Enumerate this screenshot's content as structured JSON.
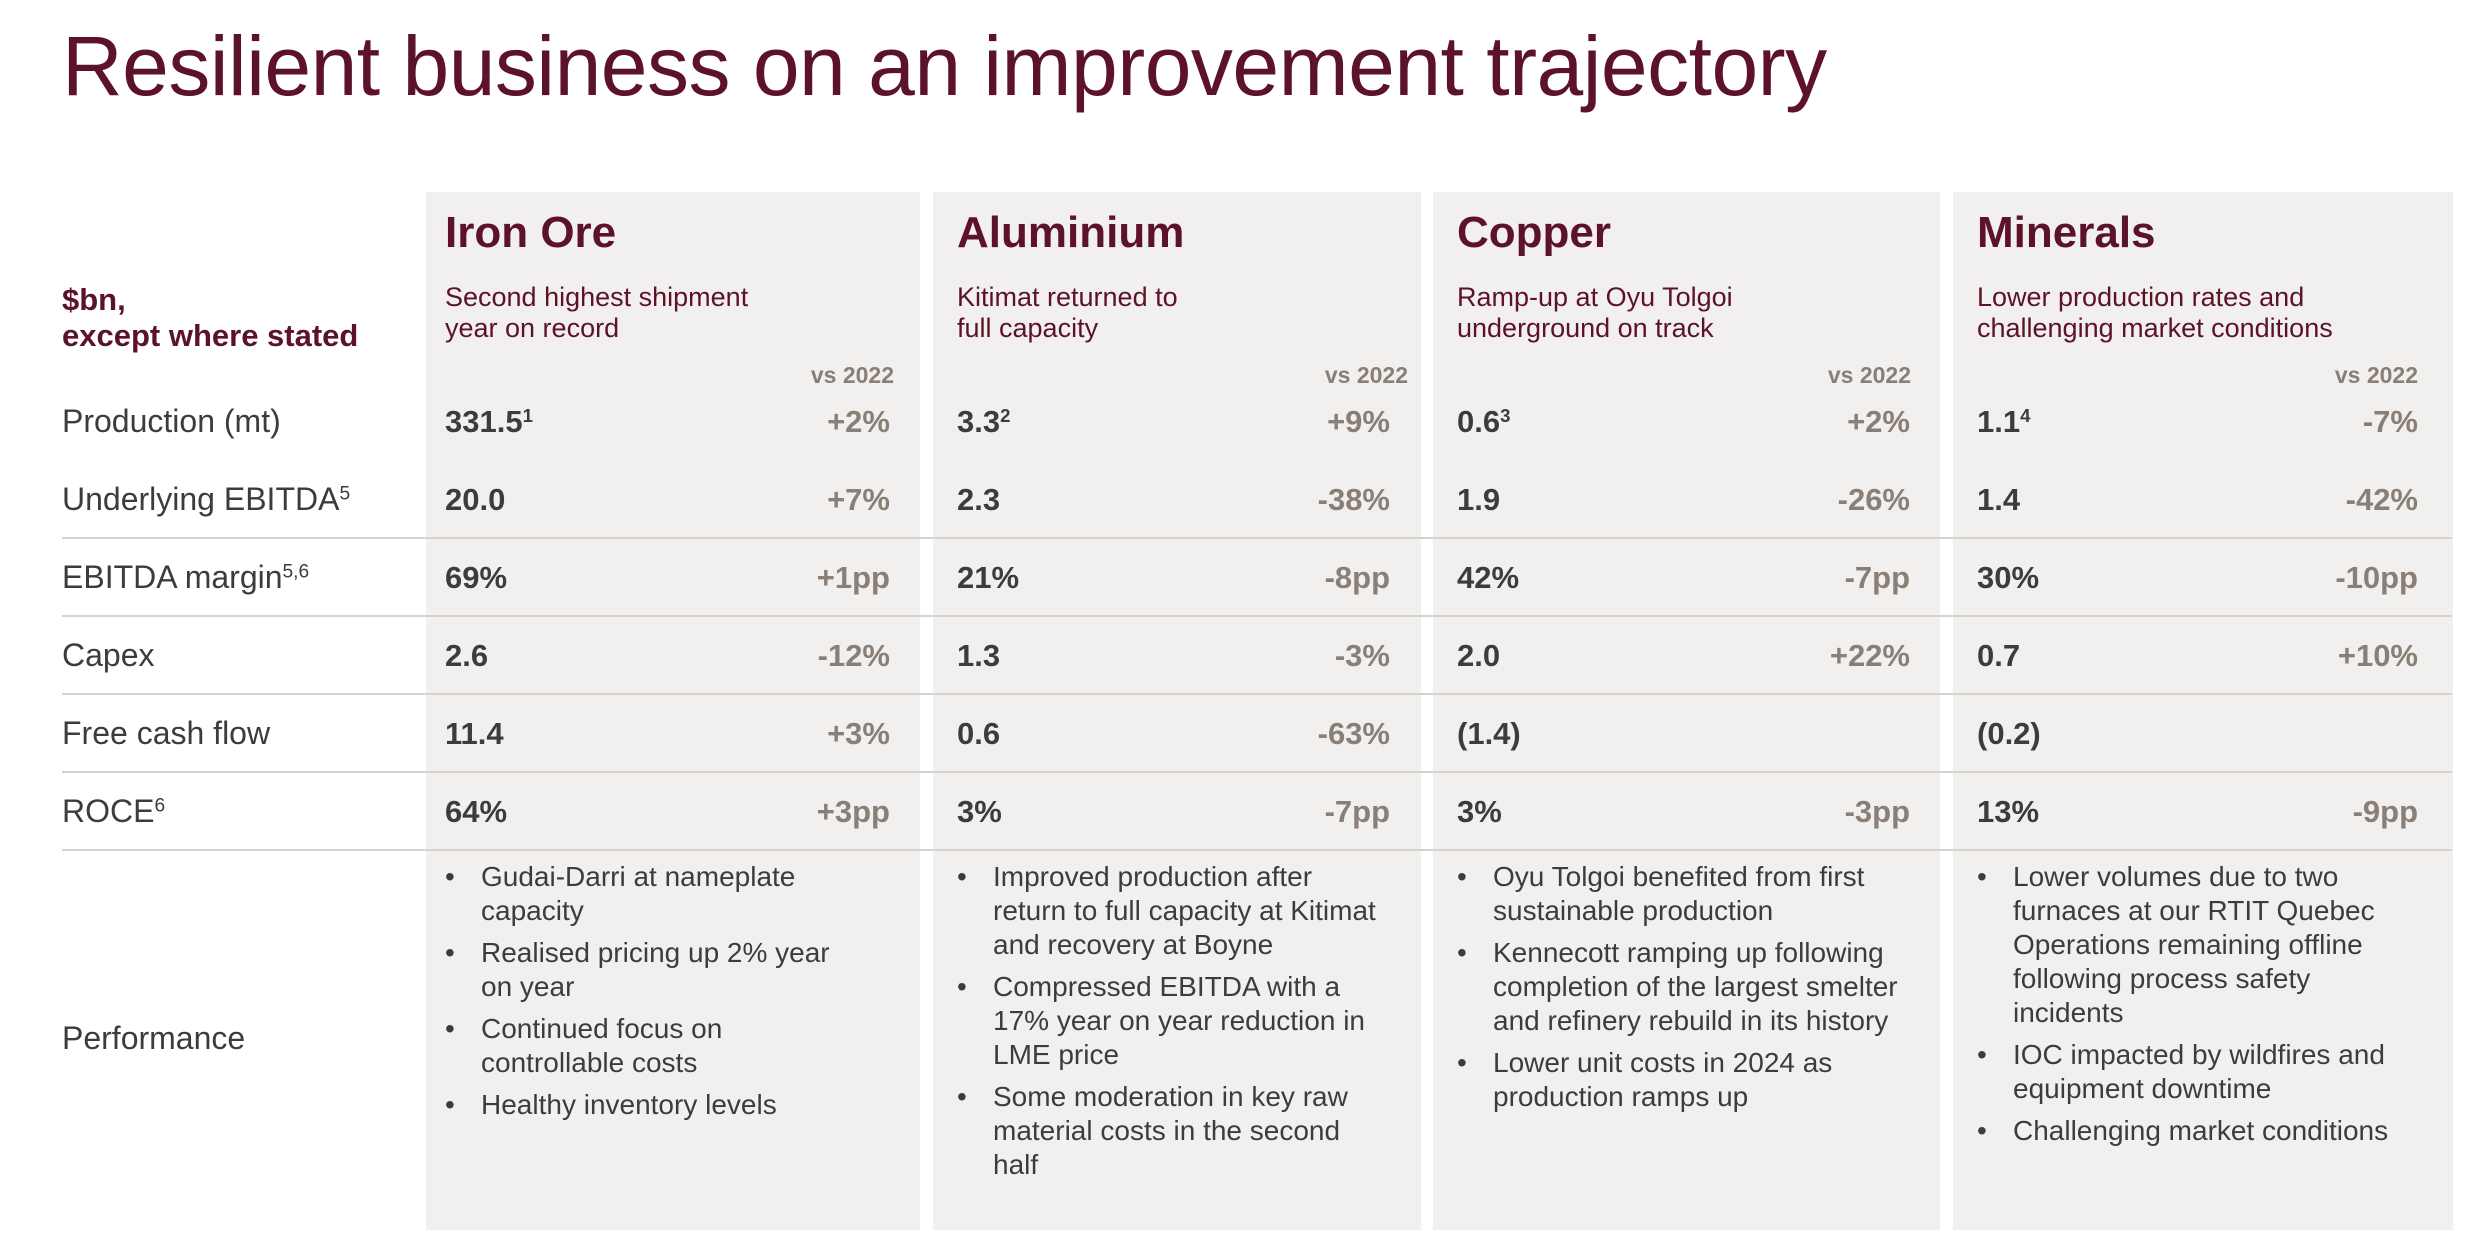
{
  "title": "Resilient business on an improvement trajectory",
  "units_label": "$bn,\nexcept where stated",
  "vs_label": "vs 2022",
  "rows": {
    "production": {
      "label": "Production (mt)",
      "sup": ""
    },
    "ebitda": {
      "label": "Underlying EBITDA",
      "sup": "5"
    },
    "margin": {
      "label": "EBITDA margin",
      "sup": "5,6"
    },
    "capex": {
      "label": "Capex",
      "sup": ""
    },
    "fcf": {
      "label": "Free cash flow",
      "sup": ""
    },
    "roce": {
      "label": "ROCE",
      "sup": "6"
    }
  },
  "performance_label": "Performance",
  "segments": [
    {
      "name": "Iron Ore",
      "desc": "Second highest shipment\nyear on record",
      "production": {
        "value": "331.5",
        "sup": "1",
        "change": "+2%"
      },
      "ebitda": {
        "value": "20.0",
        "change": "+7%"
      },
      "margin": {
        "value": "69%",
        "change": "+1pp"
      },
      "capex": {
        "value": "2.6",
        "change": "-12%"
      },
      "fcf": {
        "value": "11.4",
        "change": "+3%"
      },
      "roce": {
        "value": "64%",
        "change": "+3pp"
      },
      "bullets": [
        "Gudai-Darri at nameplate capacity",
        "Realised pricing up 2% year on year",
        "Continued focus on controllable costs",
        "Healthy inventory levels"
      ]
    },
    {
      "name": "Aluminium",
      "desc": "Kitimat returned to\nfull capacity",
      "production": {
        "value": "3.3",
        "sup": "2",
        "change": "+9%"
      },
      "ebitda": {
        "value": "2.3",
        "change": "-38%"
      },
      "margin": {
        "value": "21%",
        "change": "-8pp"
      },
      "capex": {
        "value": "1.3",
        "change": "-3%"
      },
      "fcf": {
        "value": "0.6",
        "change": "-63%"
      },
      "roce": {
        "value": "3%",
        "change": "-7pp"
      },
      "bullets": [
        "Improved production after return to full capacity at Kitimat and recovery at Boyne",
        "Compressed EBITDA with a 17% year on year reduction in LME price",
        "Some moderation in key raw material costs in the second half"
      ]
    },
    {
      "name": "Copper",
      "desc": "Ramp-up at Oyu Tolgoi\nunderground on track",
      "production": {
        "value": "0.6",
        "sup": "3",
        "change": "+2%"
      },
      "ebitda": {
        "value": "1.9",
        "change": "-26%"
      },
      "margin": {
        "value": "42%",
        "change": "-7pp"
      },
      "capex": {
        "value": "2.0",
        "change": "+22%"
      },
      "fcf": {
        "value": "(1.4)",
        "change": ""
      },
      "roce": {
        "value": "3%",
        "change": "-3pp"
      },
      "bullets": [
        "Oyu Tolgoi benefited from first sustainable production",
        "Kennecott ramping up following completion of the largest smelter and refinery rebuild in its history",
        "Lower unit costs in 2024 as production ramps up"
      ]
    },
    {
      "name": "Minerals",
      "desc": "Lower production rates and\nchallenging market conditions",
      "production": {
        "value": "1.1",
        "sup": "4",
        "change": "-7%"
      },
      "ebitda": {
        "value": "1.4",
        "change": "-42%"
      },
      "margin": {
        "value": "30%",
        "change": "-10pp"
      },
      "capex": {
        "value": "0.7",
        "change": "+10%"
      },
      "fcf": {
        "value": "(0.2)",
        "change": ""
      },
      "roce": {
        "value": "13%",
        "change": "-9pp"
      },
      "bullets": [
        "Lower volumes due to two furnaces at our RTIT Quebec Operations remaining offline following process safety incidents",
        "IOC impacted by wildfires and equipment downtime",
        "Challenging market conditions"
      ]
    }
  ],
  "colors": {
    "accent": "#5c1228",
    "panel": "#f1f0ee",
    "change": "#8a7f76",
    "text": "#3c3c3c"
  }
}
